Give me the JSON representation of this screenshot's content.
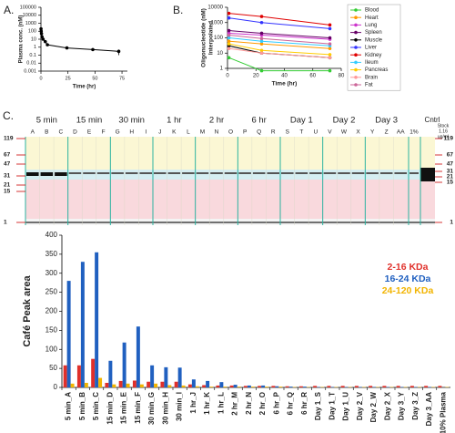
{
  "panels": [
    "A.",
    "B.",
    "C."
  ],
  "chart_data": [
    {
      "type": "line",
      "yscale": "log",
      "xlabel": "Time (hr)",
      "ylabel": [
        "Plasma conc. (nM)"
      ],
      "x": [
        0.083,
        0.25,
        0.5,
        1,
        2,
        4,
        6,
        24,
        48,
        72
      ],
      "series": [
        {
          "color": "#000000",
          "values": [
            200,
            100,
            50,
            20,
            10,
            5,
            2,
            0.8,
            0.5,
            0.3
          ],
          "errors": [
            null,
            null,
            null,
            null,
            null,
            null,
            null,
            null,
            null,
            0.2
          ]
        }
      ],
      "xlim": [
        0,
        80
      ],
      "xticks": [
        0,
        25,
        50,
        75
      ],
      "ylim": [
        0.001,
        100000
      ],
      "yticks": [
        0.001,
        0.01,
        0.1,
        1,
        10,
        100,
        1000,
        10000,
        100000
      ]
    },
    {
      "type": "line",
      "yscale": "log",
      "xlabel": "Time (hr)",
      "ylabel": [
        "Oligonucleotide (nM)",
        "Interpolated"
      ],
      "legend": "right",
      "x": [
        1,
        24,
        72
      ],
      "series": [
        {
          "name": "Blood",
          "color": "#33cc33",
          "values": [
            5,
            0.7,
            0.7
          ]
        },
        {
          "name": "Heart",
          "color": "#ff9900",
          "values": [
            60,
            40,
            20
          ]
        },
        {
          "name": "Lung",
          "color": "#cc33cc",
          "values": [
            200,
            150,
            80
          ]
        },
        {
          "name": "Spleen",
          "color": "#660066",
          "values": [
            300,
            200,
            100
          ]
        },
        {
          "name": "Muscle",
          "color": "#000000",
          "values": [
            30,
            10,
            5
          ]
        },
        {
          "name": "Liver",
          "color": "#3333ff",
          "values": [
            2000,
            1000,
            400
          ]
        },
        {
          "name": "Kidney",
          "color": "#e00000",
          "values": [
            4000,
            2500,
            700
          ]
        },
        {
          "name": "Ileum",
          "color": "#33ccff",
          "values": [
            100,
            60,
            30
          ]
        },
        {
          "name": "Pancreas",
          "color": "#ffcc00",
          "values": [
            40,
            15,
            8
          ]
        },
        {
          "name": "Brain",
          "color": "#ff9999",
          "values": [
            20,
            10,
            5
          ]
        },
        {
          "name": "Fat",
          "color": "#cc6699",
          "values": [
            150,
            90,
            40
          ]
        }
      ],
      "xlim": [
        0,
        80
      ],
      "xticks": [
        0,
        20,
        40,
        60,
        80
      ],
      "ylim": [
        1,
        10000
      ],
      "yticks": [
        1,
        10,
        100,
        1000,
        10000
      ]
    },
    {
      "type": "bar",
      "ylabel": [
        "Café Peak area"
      ],
      "legend": "right",
      "categories": [
        "5 min_A",
        "5 min_B",
        "5 min_C",
        "15 min_D",
        "15 min_E",
        "15 min_F",
        "30 min_G",
        "30 min_H",
        "30 min_I",
        "1 hr_J",
        "1 hr_K",
        "1 hr_L",
        "2 hr_M",
        "2 hr_N",
        "2 hr_O",
        "6 hr_P",
        "6 hr_Q",
        "6 hr_R",
        "Day 1_S",
        "Day 1_T",
        "Day 1_U",
        "Day 2_V",
        "Day 2_W",
        "Day 2_X",
        "Day 3_Y",
        "Day 3_Z",
        "Day 3_AA",
        "10% Plasma"
      ],
      "series": [
        {
          "name": "2-16 KDa",
          "color": "#e0302a",
          "values": [
            58,
            58,
            75,
            12,
            17,
            18,
            15,
            15,
            15,
            8,
            6,
            5,
            5,
            4,
            4,
            4,
            3,
            3,
            4,
            4,
            4,
            4,
            4,
            4,
            4,
            4,
            4,
            4
          ]
        },
        {
          "name": "16-24 KDa",
          "color": "#2060c0",
          "values": [
            280,
            330,
            355,
            70,
            118,
            160,
            58,
            53,
            52,
            21,
            17,
            14,
            7,
            5,
            5,
            3,
            2,
            2,
            1,
            1,
            1,
            1,
            1,
            1,
            1,
            1,
            1,
            0
          ]
        },
        {
          "name": "24-120 KDa",
          "color": "#f2b400",
          "values": [
            10,
            12,
            25,
            8,
            10,
            8,
            10,
            6,
            5,
            3,
            2,
            2,
            2,
            2,
            2,
            2,
            1,
            1,
            1,
            1,
            1,
            1,
            1,
            1,
            1,
            1,
            1,
            1
          ]
        }
      ],
      "ylim": [
        0,
        400
      ],
      "yticks": [
        0,
        50,
        100,
        150,
        200,
        250,
        300,
        350,
        400
      ]
    }
  ],
  "gel": {
    "groups": [
      "5 min",
      "15 min",
      "30 min",
      "1 hr",
      "2 hr",
      "6 hr",
      "Day 1",
      "Day 2",
      "Day 3",
      "Cntrl"
    ],
    "lanes": [
      "A",
      "B",
      "C",
      "D",
      "E",
      "F",
      "G",
      "H",
      "I",
      "J",
      "K",
      "L",
      "M",
      "N",
      "O",
      "P",
      "Q",
      "R",
      "S",
      "T",
      "U",
      "V",
      "W",
      "X",
      "Y",
      "Z",
      "AA",
      "1%"
    ],
    "markers_left": [
      119,
      67,
      47,
      31,
      21,
      15,
      1
    ],
    "markers_right": [
      119,
      67,
      47,
      31,
      21,
      15,
      1
    ],
    "stock": [
      "Stock",
      "1.16",
      "ug/ml"
    ]
  }
}
